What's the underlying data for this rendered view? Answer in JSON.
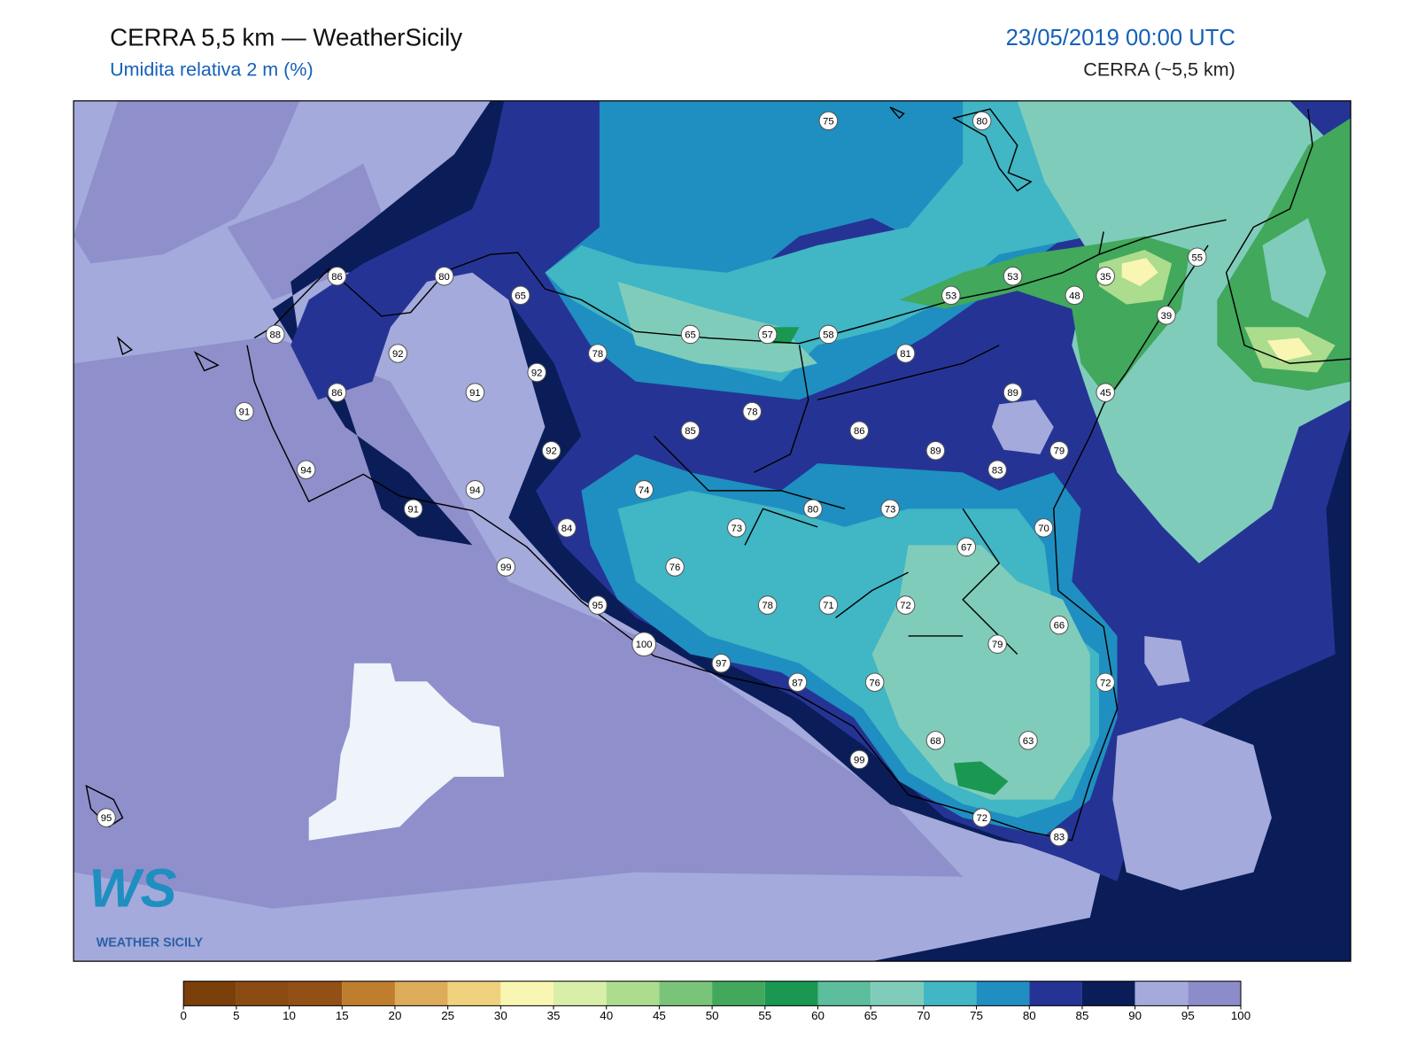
{
  "header": {
    "title": "CERRA 5,5 km — WeatherSicily",
    "subtitle": "Umidita relativa 2 m (%)",
    "datetime": "23/05/2019 00:00 UTC",
    "model": "CERRA (~5,5 km)"
  },
  "logo": {
    "mark": "WS",
    "caption": "WEATHER SICILY"
  },
  "stations": {
    "values": [
      86,
      80,
      65,
      88,
      92,
      86,
      91,
      92,
      78,
      65,
      57,
      58,
      75,
      80,
      53,
      35,
      55,
      53,
      48,
      39,
      81,
      45,
      89,
      78,
      85,
      86,
      89,
      79,
      83,
      91,
      94,
      92,
      94,
      74,
      91,
      84,
      73,
      80,
      73,
      70,
      67,
      99,
      76,
      95,
      78,
      71,
      72,
      66,
      100,
      79,
      97,
      87,
      76,
      72,
      68,
      63,
      99,
      72,
      83,
      95
    ]
  },
  "colorbar": {
    "ticks": [
      0,
      5,
      10,
      15,
      20,
      25,
      30,
      35,
      40,
      45,
      50,
      55,
      60,
      65,
      70,
      75,
      80,
      85,
      90,
      95,
      100
    ],
    "colors": [
      "#7a3f0b",
      "#8b4a12",
      "#924f16",
      "#bf7d2e",
      "#ddac5b",
      "#efd17e",
      "#f8f6b2",
      "#d8eea9",
      "#acdc8e",
      "#7ac47a",
      "#41a85c",
      "#1a9852",
      "#5cbe9c",
      "#80ccbb",
      "#41b6c4",
      "#1e8fc0",
      "#253494",
      "#0a1d58",
      "#a4aadb",
      "#8d8ccb"
    ]
  }
}
